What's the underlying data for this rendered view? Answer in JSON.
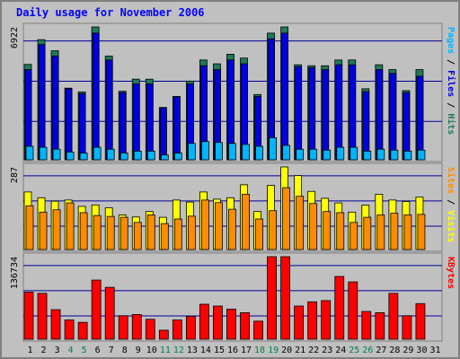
{
  "chart_data": {
    "type": "bar",
    "title": "Daily usage for November 2006",
    "categories": [
      "1",
      "2",
      "3",
      "4",
      "5",
      "6",
      "7",
      "8",
      "9",
      "10",
      "11",
      "12",
      "13",
      "14",
      "15",
      "16",
      "17",
      "18",
      "19",
      "20",
      "21",
      "22",
      "23",
      "24",
      "25",
      "26",
      "27",
      "28",
      "29",
      "30",
      "31"
    ],
    "weekend_days": [
      "4",
      "5",
      "11",
      "12",
      "18",
      "19",
      "25",
      "26"
    ],
    "colors": {
      "hits": "#1e7a5a",
      "files": "#0000e0",
      "pages": "#00b4ff",
      "visits": "#ffff00",
      "sites": "#ff8c00",
      "kbytes": "#ff0000",
      "title": "#0000ff",
      "weekday_label": "#000000",
      "weekend_label": "#00804a"
    },
    "panels": [
      {
        "id": "hits-files-pages",
        "ymax_label": "6922",
        "ylim": [
          0,
          6922
        ],
        "side_labels": [
          {
            "text": "Pages",
            "color": "#00b4ff"
          },
          {
            "text": " / ",
            "color": "#000000"
          },
          {
            "text": "Files",
            "color": "#0000e0"
          },
          {
            "text": " / ",
            "color": "#000000"
          },
          {
            "text": "Hits",
            "color": "#1e7a5a"
          }
        ],
        "series": [
          {
            "key": "hits",
            "values": [
              4970,
              6257,
              5678,
              3733,
              3530,
              6922,
              5400,
              3569,
              4200,
              4200,
              2728,
              3300,
              4100,
              5200,
              5000,
              5500,
              5300,
              3400,
              6600,
              6922,
              4950,
              4900,
              4900,
              5200,
              5200,
              3700,
              4950,
              4700,
              3600,
              4700,
              0
            ]
          },
          {
            "key": "files",
            "values": [
              4700,
              6000,
              5400,
              3700,
              3450,
              6600,
              5200,
              3500,
              3950,
              3950,
              2708,
              3270,
              3950,
              4900,
              4700,
              5200,
              5000,
              3300,
              6300,
              6600,
              4850,
              4800,
              4700,
              4950,
              4950,
              3550,
              4700,
              4500,
              3500,
              4350,
              0
            ]
          },
          {
            "key": "pages",
            "values": [
              700,
              650,
              550,
              400,
              350,
              650,
              550,
              350,
              450,
              450,
              250,
              350,
              850,
              950,
              900,
              850,
              800,
              700,
              1150,
              750,
              550,
              550,
              500,
              650,
              650,
              450,
              550,
              500,
              450,
              500,
              0
            ]
          }
        ]
      },
      {
        "id": "visits-sites",
        "ymax_label": "287",
        "ylim": [
          0,
          287
        ],
        "side_labels": [
          {
            "text": "Sites",
            "color": "#ff8c00"
          },
          {
            "text": " / ",
            "color": "#000000"
          },
          {
            "text": "Visits",
            "color": "#ffff00"
          }
        ],
        "series": [
          {
            "key": "visits",
            "values": [
              200,
              180,
              168,
              172,
              150,
              155,
              145,
              120,
              113,
              132,
              112,
              172,
              165,
              200,
              175,
              180,
              225,
              132,
              223,
              287,
              257,
              202,
              178,
              162,
              130,
              154,
              192,
              172,
              167,
              182,
              0
            ]
          },
          {
            "key": "sites",
            "values": [
              152,
              130,
              138,
              162,
              128,
              118,
              115,
              112,
              94,
              120,
              90,
              106,
              116,
              172,
              163,
              140,
              192,
              106,
              135,
              215,
              185,
              160,
              132,
              128,
              94,
              112,
              120,
              126,
              120,
              122,
              0
            ]
          }
        ]
      },
      {
        "id": "kbytes",
        "ymax_label": "136734",
        "ylim": [
          0,
          136734
        ],
        "side_labels": [
          {
            "text": "KBytes",
            "color": "#ff0000"
          }
        ],
        "series": [
          {
            "key": "kbytes",
            "values": [
              78000,
              76000,
              49000,
              32000,
              28000,
              98000,
              86000,
              39000,
              41000,
              33000,
              15000,
              32000,
              38000,
              58000,
              55000,
              50000,
              44000,
              30000,
              136734,
              136734,
              55000,
              62000,
              64000,
              104000,
              95000,
              46000,
              44000,
              76000,
              39000,
              59000,
              0
            ]
          }
        ]
      }
    ]
  }
}
